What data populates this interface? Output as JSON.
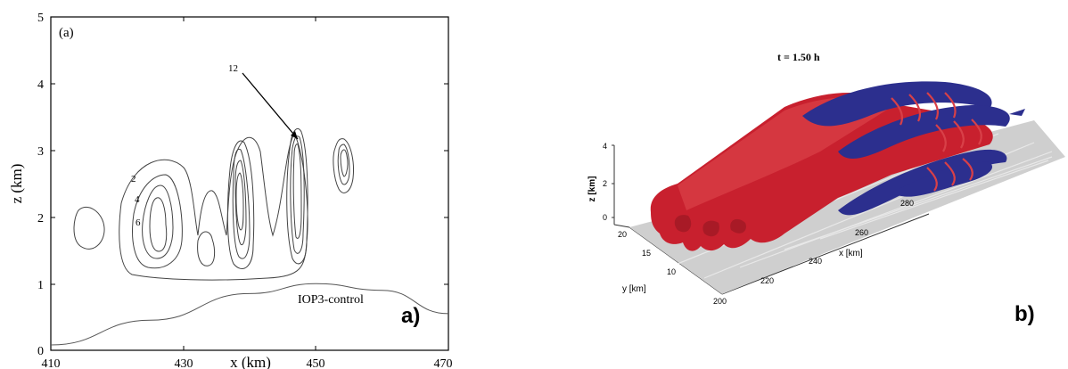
{
  "left_panel": {
    "panel_tag": "(a)",
    "xlabel": "x (km)",
    "ylabel": "z (km)",
    "x_ticks": [
      "410",
      "430",
      "450",
      "470"
    ],
    "y_ticks": [
      "0",
      "1",
      "2",
      "3",
      "4",
      "5"
    ],
    "contour_labels": [
      "2",
      "4",
      "6",
      "12"
    ],
    "experiment_label": "IOP3-control",
    "corner_label": "a)"
  },
  "right_panel": {
    "time_label": "t = 1.50 h",
    "xlabel": "x [km]",
    "ylabel": "y [km]",
    "zlabel": "z [km]",
    "x_ticks": [
      "200",
      "220",
      "240",
      "260",
      "280"
    ],
    "y_ticks": [
      "20",
      "15",
      "10"
    ],
    "z_ticks": [
      "0",
      "2",
      "4"
    ],
    "corner_label": "b)",
    "colors": {
      "red_surface": "#c8202e",
      "blue_surface": "#2c2f8e",
      "ground": "#cfcfcf"
    }
  },
  "chart_data": {
    "type": "line",
    "xlabel": "x (km)",
    "ylabel": "z (km)",
    "xlim": [
      410,
      470
    ],
    "ylim": [
      0,
      5
    ],
    "series": [
      {
        "values": [
          [
            410,
            0.08
          ],
          [
            425,
            0.45
          ],
          [
            440,
            0.85
          ],
          [
            450,
            1.0
          ],
          [
            460,
            0.9
          ],
          [
            470,
            0.55
          ]
        ]
      }
    ]
  }
}
